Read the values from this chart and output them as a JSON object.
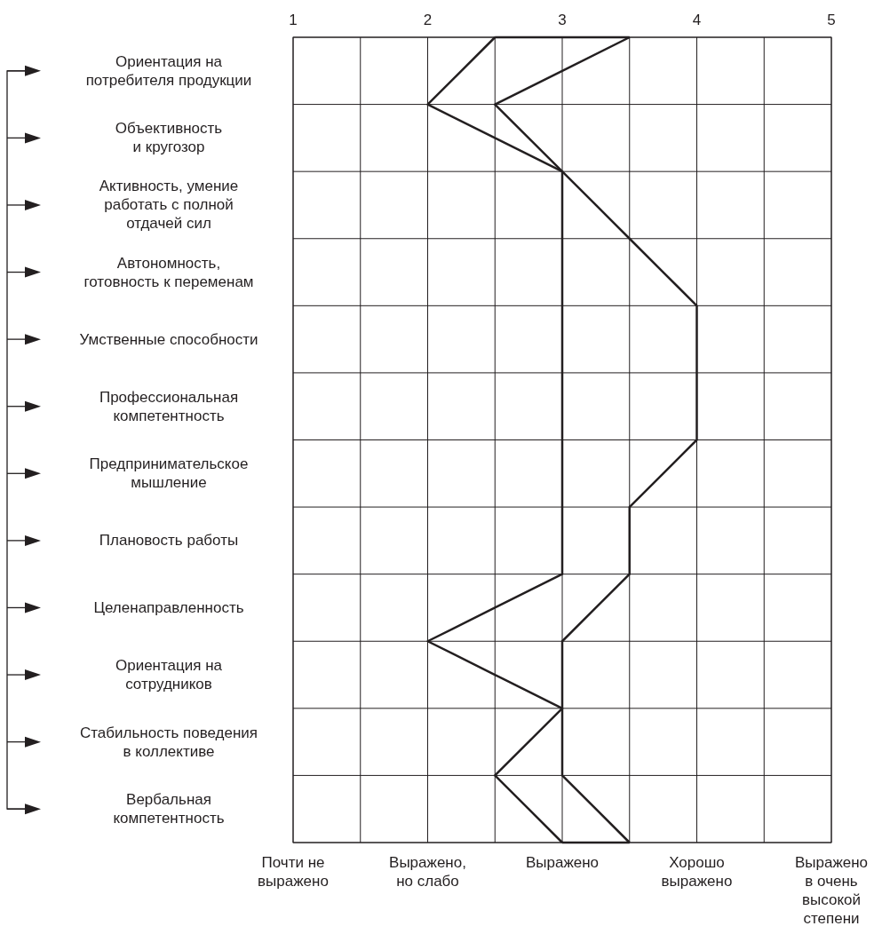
{
  "chart_data": {
    "type": "line",
    "orientation": "horizontal",
    "categories": [
      null,
      "Ориентация на\nпотребителя продукции",
      null,
      "Объективность\nи кругозор",
      null,
      "Активность, умение\nработать с полной\nотдачей сил",
      null,
      "Автономность,\nготовность к переменам",
      null,
      "Умственные способности",
      null,
      "Профессиональная\nкомпетентность",
      null,
      "Предпринимательское\nмышление",
      null,
      "Плановость работы",
      null,
      "Целенаправленность",
      null,
      "Ориентация на\nсотрудников",
      null,
      "Стабильность поведения\nв коллективе",
      null,
      "Вербальная\nкомпетентность",
      null
    ],
    "series": [
      {
        "color": "#231f20",
        "values": [
          2.5,
          2.25,
          2,
          2.5,
          3,
          3,
          3,
          3,
          3,
          3,
          3,
          3,
          3,
          3,
          3,
          3,
          3,
          2.5,
          2,
          2.5,
          3,
          2.75,
          2.5,
          2.75,
          3
        ]
      },
      {
        "color": "#231f20",
        "values": [
          3.5,
          3,
          2.5,
          2.75,
          3,
          3.25,
          3.5,
          3.75,
          4,
          4,
          4,
          4,
          4,
          3.75,
          3.5,
          3.5,
          3.5,
          3.25,
          3,
          3,
          3,
          3,
          3,
          3.25,
          3.5
        ]
      }
    ],
    "xlim": [
      1,
      5
    ],
    "xticks": [
      1,
      {
        "value": 1.5,
        "label": null
      },
      2,
      {
        "value": 2.5,
        "label": null
      },
      3,
      {
        "value": 3.5,
        "label": null
      },
      4,
      {
        "value": 4.5,
        "label": null
      },
      5
    ],
    "annotations": [
      "Почти не\nвыражено",
      "Выражено,\nно слабо",
      "Выражено",
      "Хорошо\nвыражено",
      "Выражено\nв очень\nвысокой\nстепени"
    ],
    "grid": true,
    "marker": "none",
    "line_style": "solid"
  }
}
